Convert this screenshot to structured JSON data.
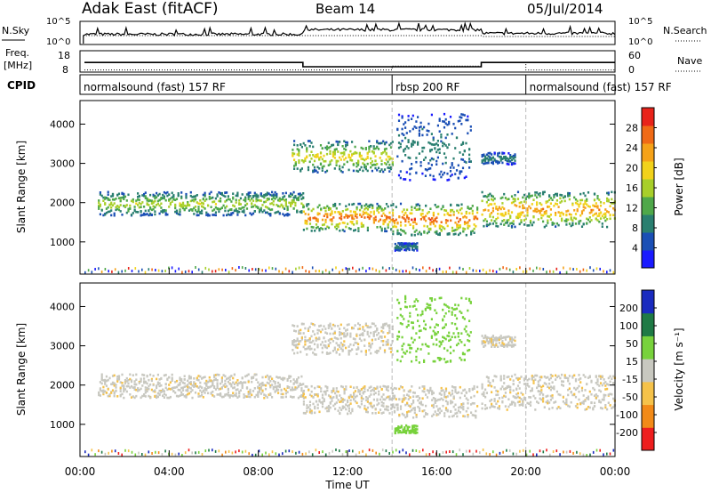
{
  "header": {
    "station": "Adak East (fitACF)",
    "beam": "Beam 14",
    "date": "05/Jul/2014"
  },
  "side_labels": {
    "nsky": "N.Sky",
    "nsearch": "N.Search",
    "freq": "Freq.",
    "freq_unit": "[MHz]",
    "nave": "Nave",
    "cpid": "CPID"
  },
  "small_axes": {
    "noise_left_ticks": [
      "10^5",
      "10^0"
    ],
    "noise_right_ticks": [
      "10^5",
      "10^0"
    ],
    "freq_left_ticks": [
      "18",
      "8"
    ],
    "nave_right_ticks": [
      "60",
      "0"
    ]
  },
  "cpid_segments": [
    {
      "label": "normalsound (fast) 157 RF",
      "start_h": 0,
      "end_h": 14
    },
    {
      "label": "rbsp 200 RF",
      "start_h": 14,
      "end_h": 20
    },
    {
      "label": "normalsound (fast) 157 RF",
      "start_h": 20,
      "end_h": 24
    }
  ],
  "x_axis": {
    "label": "Time UT",
    "ticks": [
      "00:00",
      "04:00",
      "08:00",
      "12:00",
      "16:00",
      "20:00",
      "00:00"
    ],
    "range_h": [
      0,
      24
    ]
  },
  "y_axis": {
    "label": "Slant Range [km]",
    "ticks": [
      1000,
      2000,
      3000,
      4000
    ],
    "range_km": [
      180,
      4600
    ]
  },
  "power_colorbar": {
    "label": "Power [dB]",
    "ticks": [
      4,
      8,
      12,
      16,
      20,
      24,
      28
    ],
    "range": [
      0,
      32
    ],
    "colors": [
      "#1a1aff",
      "#1b4fb5",
      "#2a7f70",
      "#4fa84a",
      "#a8cf2a",
      "#f2d21b",
      "#f5a219",
      "#f06a16",
      "#e8231a"
    ]
  },
  "velocity_colorbar": {
    "label": "Velocity [m s⁻¹]",
    "ticks": [
      "200",
      "100",
      "50",
      "15",
      "-15",
      "-50",
      "-100",
      "-200"
    ],
    "colors": [
      "#1a2bbf",
      "#1f7a45",
      "#78d23c",
      "#c8c8c0",
      "#f5c24a",
      "#f28a18",
      "#ee1e1e"
    ]
  },
  "chart_data": {
    "type": "heatmap",
    "title": "Adak East (fitACF)  Beam 14  05/Jul/2014",
    "xlabel": "Time UT",
    "ylabel": "Slant Range [km]",
    "xlim_hours": [
      0,
      24
    ],
    "ylim_km": [
      180,
      4600
    ],
    "mode_changes_hours": [
      14,
      20
    ],
    "freq_mhz_segments": [
      {
        "start_h": 0.2,
        "end_h": 10,
        "value": 12.5
      },
      {
        "start_h": 10,
        "end_h": 18,
        "value": 10.5
      },
      {
        "start_h": 18,
        "end_h": 24,
        "value": 12.5
      }
    ],
    "nave_segments": [
      {
        "start_h": 0.2,
        "end_h": 14,
        "value": 6
      },
      {
        "start_h": 14,
        "end_h": 18,
        "value": 17
      },
      {
        "start_h": 18,
        "end_h": 20,
        "value": 27
      },
      {
        "start_h": 20,
        "end_h": 24,
        "value": 6
      }
    ],
    "scatter_bands": [
      {
        "start_h": 0.8,
        "end_h": 10,
        "range_km": [
          1700,
          2300
        ],
        "power_db": 12,
        "velocity": "low"
      },
      {
        "start_h": 10,
        "end_h": 14,
        "range_km": [
          1300,
          2000
        ],
        "power_db": 20,
        "velocity": "low"
      },
      {
        "start_h": 14,
        "end_h": 17.8,
        "range_km": [
          1200,
          2000
        ],
        "power_db": 20,
        "velocity": "low"
      },
      {
        "start_h": 18,
        "end_h": 24,
        "range_km": [
          1400,
          2300
        ],
        "power_db": 18,
        "velocity": "low"
      },
      {
        "start_h": 9.5,
        "end_h": 14,
        "range_km": [
          2800,
          3600
        ],
        "power_db": 14,
        "velocity": "low"
      },
      {
        "start_h": 14.2,
        "end_h": 17.5,
        "range_km": [
          2600,
          4300
        ],
        "power_db": 6,
        "velocity": "positive"
      },
      {
        "start_h": 14.1,
        "end_h": 15.1,
        "range_km": [
          800,
          1000
        ],
        "power_db": 6,
        "velocity": "positive"
      },
      {
        "start_h": 18,
        "end_h": 19.5,
        "range_km": [
          3000,
          3300
        ],
        "power_db": 6,
        "velocity": "low"
      }
    ]
  }
}
